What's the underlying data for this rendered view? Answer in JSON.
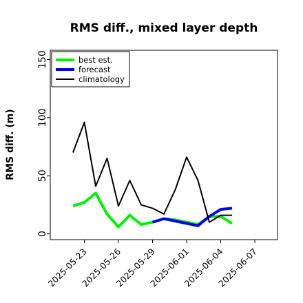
{
  "chart_data": {
    "type": "line",
    "title": "RMS diff., mixed layer depth",
    "xlabel": "",
    "ylabel": "RMS diff. (m)",
    "xlim": [
      "2025-05-20",
      "2025-06-09"
    ],
    "ylim": [
      -5,
      158
    ],
    "yticks": [
      0,
      50,
      100,
      150
    ],
    "xticks": [
      {
        "date": "2025-05-23",
        "label": "2025-05-23",
        "color": "#000000"
      },
      {
        "date": "2025-05-26",
        "label": "2025-05-26",
        "color": "#000000"
      },
      {
        "date": "2025-05-29",
        "label": "2025-05-29",
        "color": "#228B22"
      },
      {
        "date": "2025-06-01",
        "label": "2025-06-01",
        "color": "#000000"
      },
      {
        "date": "2025-06-04",
        "label": "2025-06-04",
        "color": "#000000"
      },
      {
        "date": "2025-06-07",
        "label": "2025-06-07",
        "color": "#000000"
      }
    ],
    "grid": false,
    "legend_position": "top-left",
    "series": [
      {
        "name": "best est.",
        "color": "#00ee00",
        "width": 4,
        "points": [
          [
            "2025-05-22",
            24
          ],
          [
            "2025-05-23",
            27
          ],
          [
            "2025-05-24",
            35
          ],
          [
            "2025-05-25",
            17
          ],
          [
            "2025-05-26",
            6
          ],
          [
            "2025-05-27",
            16
          ],
          [
            "2025-05-28",
            8
          ],
          [
            "2025-05-29",
            10
          ],
          [
            "2025-05-30",
            13
          ],
          [
            "2025-05-31",
            12
          ],
          [
            "2025-06-01",
            10
          ],
          [
            "2025-06-02",
            8
          ],
          [
            "2025-06-03",
            15
          ],
          [
            "2025-06-04",
            15
          ],
          [
            "2025-06-05",
            9
          ]
        ]
      },
      {
        "name": "forecast",
        "color": "#0000ee",
        "width": 4,
        "points": [
          [
            "2025-05-29",
            10
          ],
          [
            "2025-05-30",
            13
          ],
          [
            "2025-05-31",
            11
          ],
          [
            "2025-06-01",
            9
          ],
          [
            "2025-06-02",
            7
          ],
          [
            "2025-06-03",
            15
          ],
          [
            "2025-06-04",
            21
          ],
          [
            "2025-06-05",
            22
          ]
        ]
      },
      {
        "name": "climatology",
        "color": "#000000",
        "width": 2,
        "points": [
          [
            "2025-05-22",
            70
          ],
          [
            "2025-05-23",
            96
          ],
          [
            "2025-05-24",
            41
          ],
          [
            "2025-05-25",
            65
          ],
          [
            "2025-05-26",
            24
          ],
          [
            "2025-05-27",
            46
          ],
          [
            "2025-05-28",
            25
          ],
          [
            "2025-05-29",
            22
          ],
          [
            "2025-05-30",
            17
          ],
          [
            "2025-05-31",
            38
          ],
          [
            "2025-06-01",
            66
          ],
          [
            "2025-06-02",
            46
          ],
          [
            "2025-06-03",
            10
          ],
          [
            "2025-06-04",
            16
          ],
          [
            "2025-06-05",
            16
          ]
        ]
      }
    ]
  }
}
